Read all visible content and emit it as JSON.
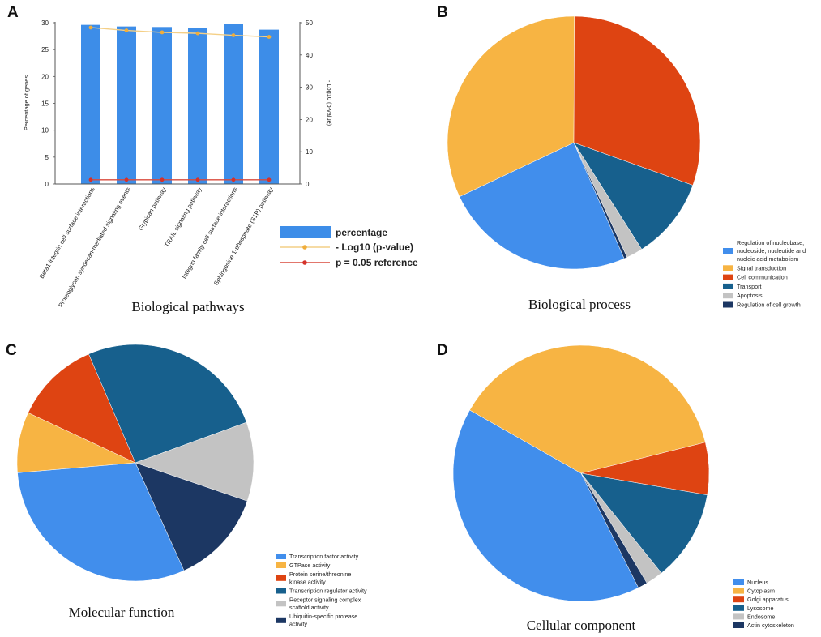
{
  "chart_data": [
    {
      "panel": "A",
      "type": "bar",
      "title": "Biological pathways",
      "categories": [
        "Beta1 integrin cell surface interactions",
        "Proteoglycan syndecan-mediated signaling events",
        "Glypican pathway",
        "TRAIL signaling pathway",
        "Integrin family cell surface interactions",
        "Sphingosine 1-phosphate (S1P) pathway"
      ],
      "series": [
        {
          "name": "percentage",
          "color": "#3d8de8",
          "values": [
            29.6,
            29.3,
            29.2,
            29.0,
            29.8,
            28.7
          ]
        },
        {
          "name": "- Log10 (p-value)",
          "color": "#f4cf86",
          "marker_color": "#f0ad3a",
          "values": [
            48.5,
            47.6,
            47.0,
            46.7,
            46.1,
            45.6
          ]
        },
        {
          "name": "p = 0.05 reference",
          "color": "#d9493b",
          "marker_color": "#d4322a",
          "values": [
            1.3,
            1.3,
            1.3,
            1.3,
            1.3,
            1.3
          ]
        }
      ],
      "xlabel": "",
      "ylabel": "Percentage of genes",
      "ylim": [
        0,
        30
      ],
      "yticks": [
        0,
        5,
        10,
        15,
        20,
        25,
        30
      ],
      "y2label": "- Log10 (p-value)",
      "y2lim": [
        0,
        50
      ],
      "y2ticks": [
        0,
        10,
        20,
        30,
        40,
        50
      ],
      "grid": false,
      "legend": "bottom-right"
    },
    {
      "panel": "B",
      "type": "pie",
      "title": "Biological process",
      "labels": [
        [
          "Regulation of nucleobase,",
          "nucleoside, nucleotide and",
          "nucleic acid metabolism"
        ],
        [
          "Signal transduction"
        ],
        [
          "Cell communication"
        ],
        [
          "Transport"
        ],
        [
          "Apoptosis"
        ],
        [
          "Regulation of cell growth"
        ]
      ],
      "values": [
        24.5,
        32.1,
        30.4,
        10.5,
        2.1,
        0.4
      ],
      "colors": [
        "#418eec",
        "#f7b443",
        "#de4412",
        "#17608d",
        "#c3c3c3",
        "#1c3763"
      ],
      "legend": "bottom-right"
    },
    {
      "panel": "C",
      "type": "pie",
      "title": "Molecular function",
      "labels": [
        [
          "Transcription factor activity"
        ],
        [
          "GTPase activity"
        ],
        [
          "Protein serine/threonine",
          "kinase activity"
        ],
        [
          "Transcription regulator activity"
        ],
        [
          "Receptor signaling complex",
          "scaffold activity"
        ],
        [
          "Ubiquitin-specific protease",
          "activity"
        ]
      ],
      "values": [
        30.4,
        8.3,
        11.6,
        25.9,
        10.8,
        13.0
      ],
      "colors": [
        "#418eec",
        "#f7b443",
        "#de4412",
        "#17608d",
        "#c3c3c3",
        "#1c3763"
      ],
      "legend": "bottom-right"
    },
    {
      "panel": "D",
      "type": "pie",
      "title": "Cellular component",
      "labels": [
        [
          "Nucleus"
        ],
        [
          "Cytoplasm"
        ],
        [
          "Golgi apparatus"
        ],
        [
          "Lysosome"
        ],
        [
          "Endosome"
        ],
        [
          "Actin cytoskeleton"
        ]
      ],
      "values": [
        40.6,
        37.9,
        6.6,
        11.5,
        2.2,
        1.2
      ],
      "colors": [
        "#418eec",
        "#f7b443",
        "#de4412",
        "#17608d",
        "#c3c3c3",
        "#1c3763"
      ],
      "legend": "bottom-right"
    }
  ]
}
